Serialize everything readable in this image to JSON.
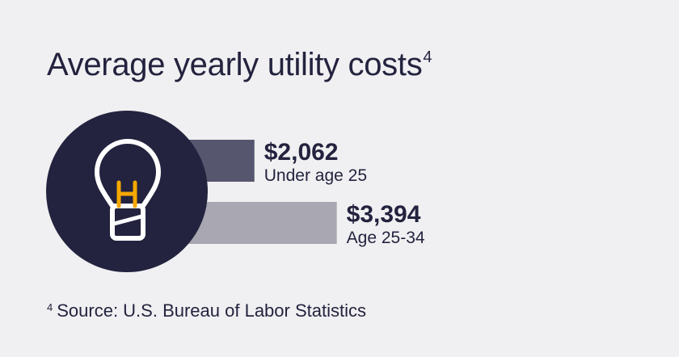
{
  "title": "Average yearly utility costs",
  "title_footnote_marker": "4",
  "footnote": {
    "marker": "4",
    "text": "Source: U.S. Bureau of Labor Statistics"
  },
  "icon": "lightbulb-icon",
  "colors": {
    "background": "#f0f0f2",
    "text": "#23233f",
    "circle": "#23233f",
    "bulb_outline": "#ffffff",
    "filament": "#f5a800"
  },
  "chart_data": {
    "type": "bar",
    "orientation": "horizontal",
    "categories": [
      "Under age 25",
      "Age 25-34"
    ],
    "values": [
      2062,
      3394
    ],
    "value_labels": [
      "$2,062",
      "$3,394"
    ],
    "bar_colors": [
      "#57566f",
      "#a8a7b2"
    ],
    "title": "Average yearly utility costs",
    "xlabel": "",
    "ylabel": "",
    "grid": false
  }
}
